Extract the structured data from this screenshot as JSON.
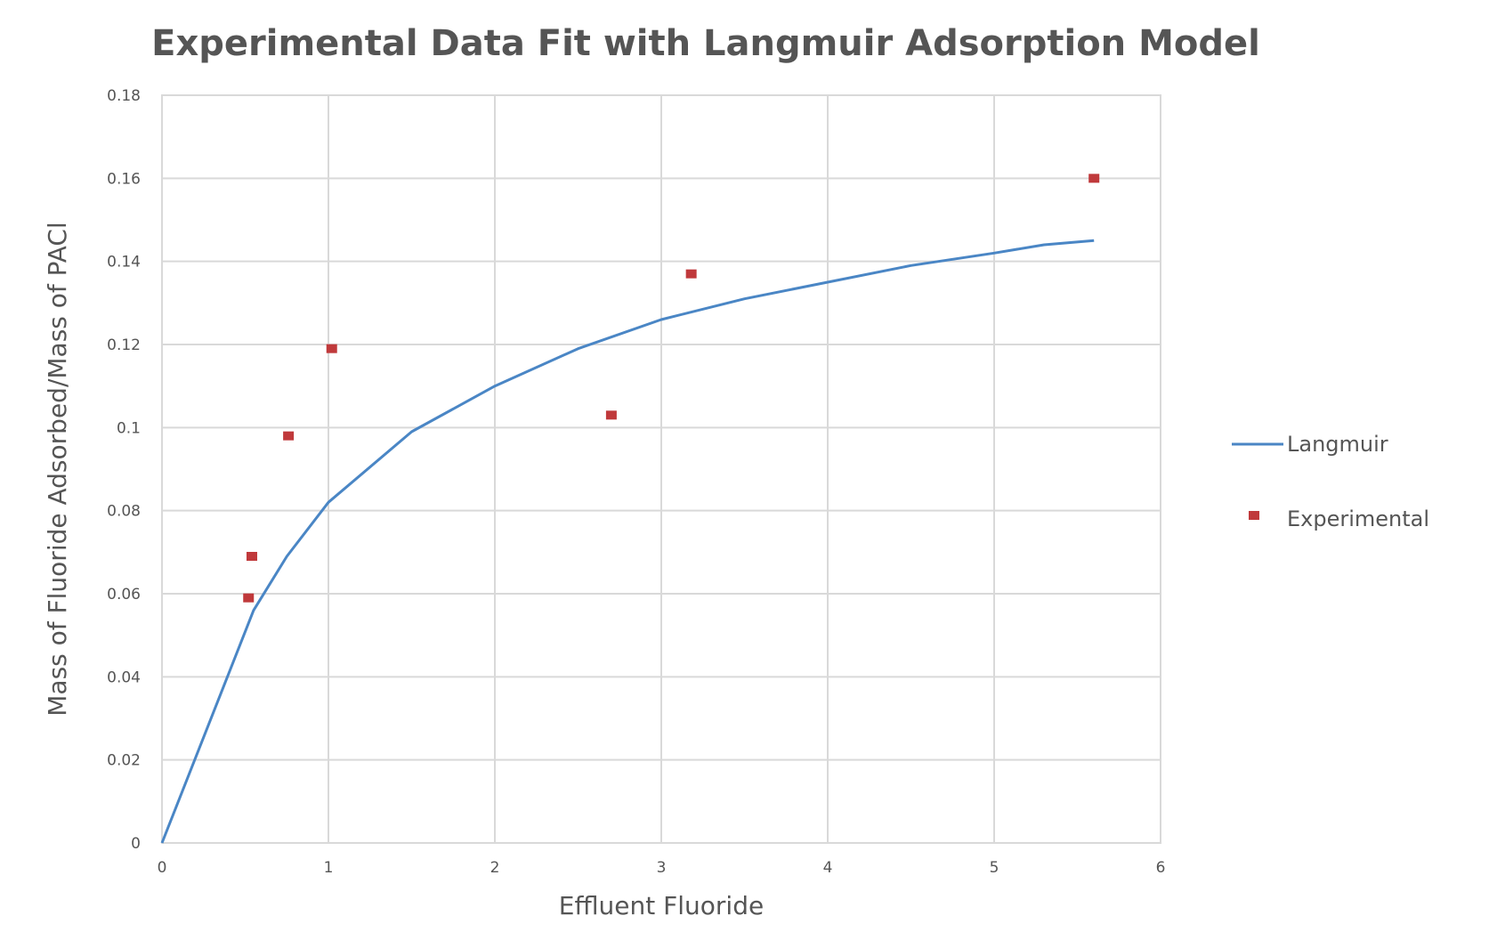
{
  "chart_data": {
    "type": "scatter",
    "title": "Experimental Data Fit with Langmuir Adsorption  Model",
    "xlabel": "Effluent Fluoride",
    "ylabel": "Mass of Fluoride Adsorbed/Mass of PACl",
    "xlim": [
      0,
      6
    ],
    "ylim": [
      0,
      0.18
    ],
    "x_ticks": [
      0,
      1,
      2,
      3,
      4,
      5,
      6
    ],
    "x_tick_labels": [
      "0",
      "1",
      "2",
      "3",
      "4",
      "5",
      "6"
    ],
    "y_ticks": [
      0,
      0.02,
      0.04,
      0.06,
      0.08,
      0.1,
      0.12,
      0.14,
      0.16,
      0.18
    ],
    "y_tick_labels": [
      "0",
      "0.02",
      "0.04",
      "0.06",
      "0.08",
      "0.1",
      "0.12",
      "0.14",
      "0.16",
      "0.18"
    ],
    "grid": true,
    "legend_position": "right",
    "series": [
      {
        "name": "Langmuir",
        "kind": "line",
        "color": "#4a86c5",
        "x": [
          0,
          0.55,
          0.75,
          1.0,
          1.5,
          2.0,
          2.5,
          3.0,
          3.5,
          4.0,
          4.5,
          5.0,
          5.3,
          5.6
        ],
        "y": [
          0,
          0.056,
          0.069,
          0.082,
          0.099,
          0.11,
          0.119,
          0.126,
          0.131,
          0.135,
          0.139,
          0.142,
          0.144,
          0.145
        ]
      },
      {
        "name": "Experimental",
        "kind": "markers",
        "color": "#c0393b",
        "x": [
          0.52,
          0.54,
          0.76,
          1.02,
          2.7,
          3.18,
          5.6
        ],
        "y": [
          0.059,
          0.069,
          0.098,
          0.119,
          0.103,
          0.137,
          0.16
        ]
      }
    ]
  }
}
